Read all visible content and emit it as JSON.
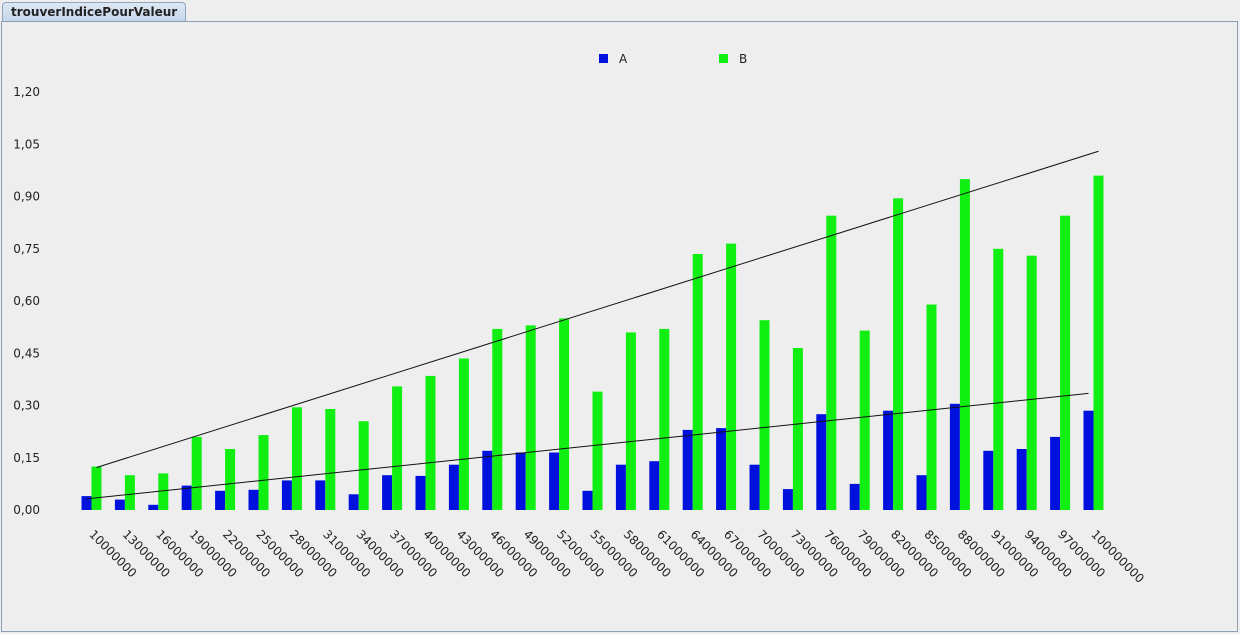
{
  "tab": {
    "title": "trouverIndicePourValeur"
  },
  "chart_data": {
    "type": "bar",
    "legend_position": "top-center",
    "categories": [
      "10000000",
      "13000000",
      "16000000",
      "19000000",
      "22000000",
      "25000000",
      "28000000",
      "31000000",
      "34000000",
      "37000000",
      "40000000",
      "43000000",
      "46000000",
      "49000000",
      "52000000",
      "55000000",
      "58000000",
      "61000000",
      "64000000",
      "67000000",
      "70000000",
      "73000000",
      "76000000",
      "79000000",
      "82000000",
      "85000000",
      "88000000",
      "91000000",
      "94000000",
      "97000000",
      "100000000"
    ],
    "series": [
      {
        "name": "A",
        "color": "#0011dd",
        "values": [
          0.04,
          0.03,
          0.015,
          0.07,
          0.055,
          0.058,
          0.085,
          0.085,
          0.045,
          0.1,
          0.098,
          0.13,
          0.17,
          0.165,
          0.165,
          0.055,
          0.13,
          0.14,
          0.23,
          0.235,
          0.13,
          0.06,
          0.275,
          0.075,
          0.285,
          0.1,
          0.305,
          0.17,
          0.175,
          0.21,
          0.285
        ]
      },
      {
        "name": "B",
        "color": "#11ee11",
        "values": [
          0.125,
          0.1,
          0.105,
          0.21,
          0.175,
          0.215,
          0.295,
          0.29,
          0.255,
          0.355,
          0.385,
          0.435,
          0.52,
          0.53,
          0.55,
          0.34,
          0.51,
          0.52,
          0.735,
          0.765,
          0.545,
          0.465,
          0.845,
          0.515,
          0.895,
          0.59,
          0.95,
          0.75,
          0.73,
          0.845,
          0.96
        ]
      }
    ],
    "trendlines": [
      {
        "series": "A",
        "from": 0.032,
        "to": 0.335
      },
      {
        "series": "B",
        "from": 0.122,
        "to": 1.03
      }
    ],
    "y_ticks": [
      "0,00",
      "0,15",
      "0,30",
      "0,45",
      "0,60",
      "0,75",
      "0,90",
      "1,05",
      "1,20"
    ],
    "y_tick_values": [
      0,
      0.15,
      0.3,
      0.45,
      0.6,
      0.75,
      0.9,
      1.05,
      1.2
    ],
    "ylim": [
      0,
      1.25
    ],
    "grid": false
  }
}
